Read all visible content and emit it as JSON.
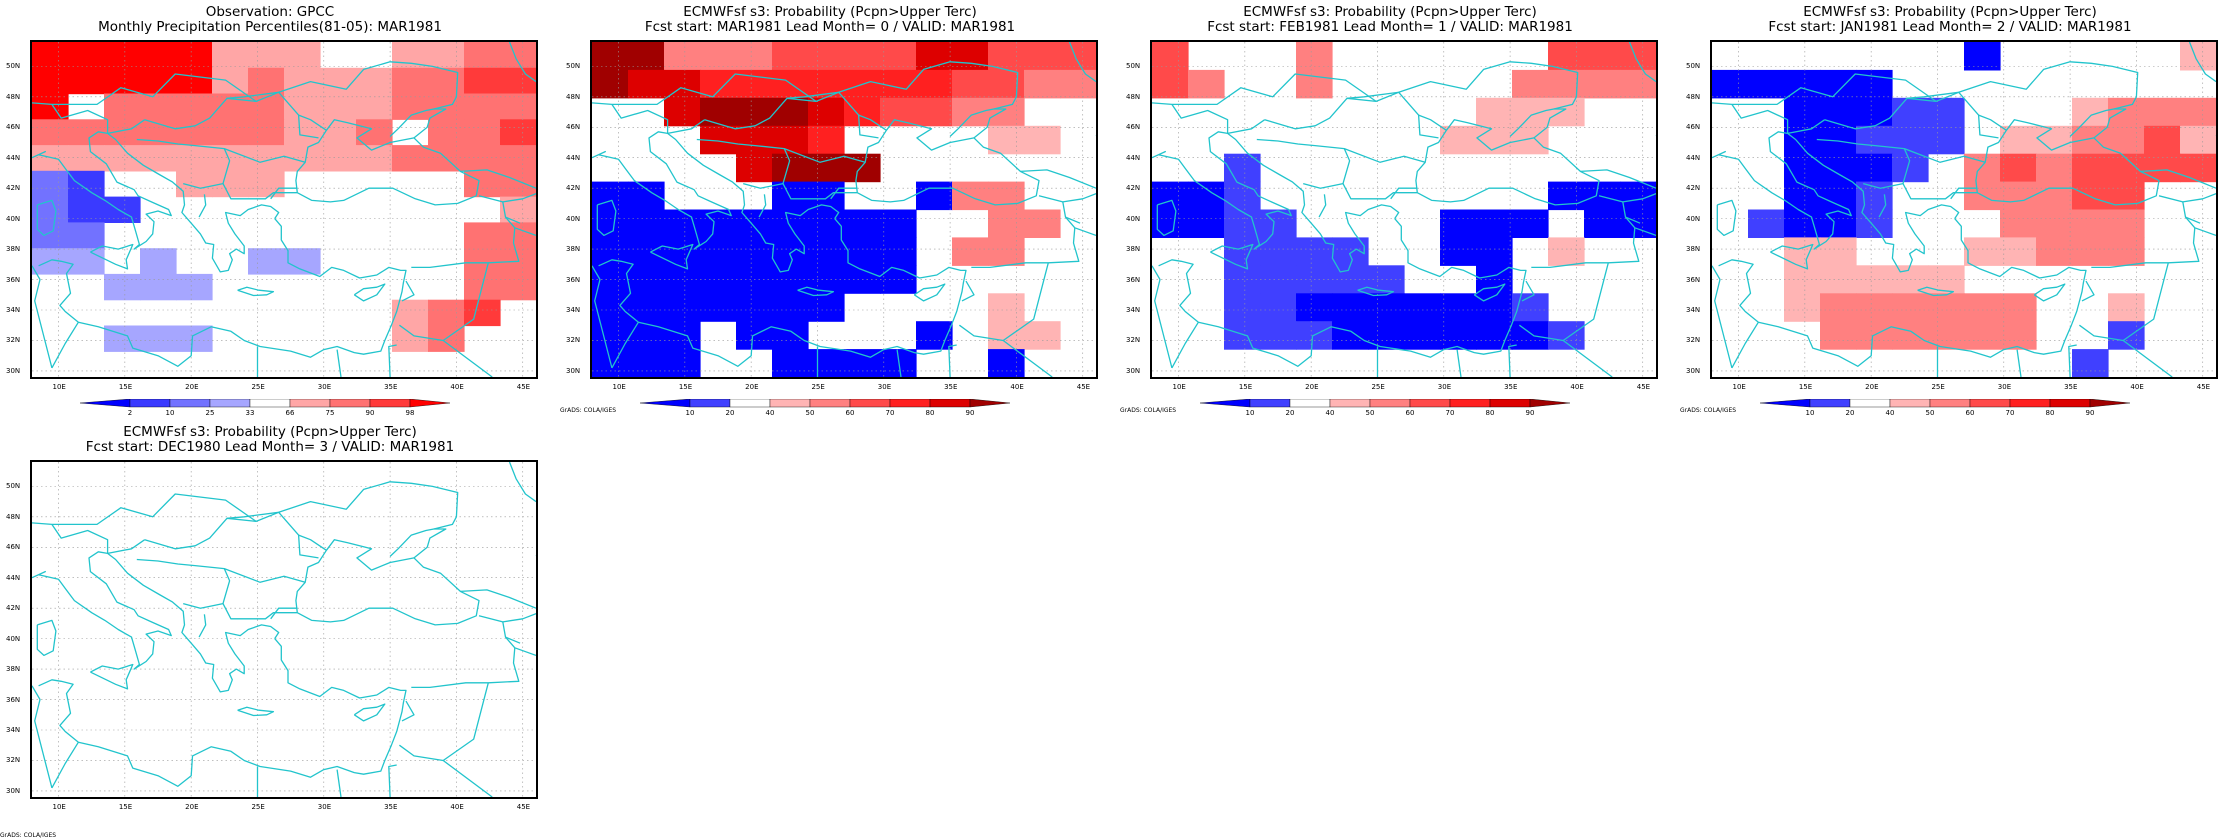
{
  "map_common": {
    "lon_ticks": [
      "10E",
      "15E",
      "20E",
      "25E",
      "30E",
      "35E",
      "40E",
      "45E"
    ],
    "lat_ticks": [
      "50N",
      "48N",
      "46N",
      "44N",
      "42N",
      "40N",
      "38N",
      "36N",
      "34N",
      "32N",
      "30N"
    ],
    "coast_color": "#22c4cc",
    "lon_range": [
      8,
      46
    ],
    "lat_range": [
      29.6,
      51.6
    ]
  },
  "panels": [
    {
      "id": "obs",
      "title1": "Observation: GPCC",
      "title2": "Monthly Precipitation Percentiles(81-05): MAR1981",
      "credit": "",
      "colorbar": {
        "labels": [
          "2",
          "10",
          "25",
          "33",
          "66",
          "75",
          "90",
          "98"
        ],
        "colors": [
          "#0000ff",
          "#3a3aff",
          "#7272ff",
          "#a6a6ff",
          "#ffffff",
          "#ffa6a6",
          "#ff7272",
          "#ff3a3a",
          "#ff0000"
        ]
      },
      "grid": [
        "66666222112233",
        "66666232223344",
        "61333332223333",
        "33333332231334",
        "22222222223333",
        "cb11222111113333",
        "cbb11111111112333",
        "cc1111111111333",
        "dd1d11dd111133",
        "11ddd111111133",
        "1111111111234",
        "11ddd1111123",
        "11111111111"
      ]
    },
    {
      "id": "lm0",
      "title1": "ECMWFsf s3: Probability (Pcpn>Upper Terc)",
      "title2": "Fcst start: MAR1981   Lead Month= 0 / VALID: MAR1981",
      "credit": "GrADS: COLA/IGES",
      "colorbar": {
        "labels": [
          "10",
          "20",
          "40",
          "50",
          "60",
          "70",
          "80",
          "90"
        ],
        "colors": [
          "#0000ff",
          "#4040ff",
          "#ffffff",
          "#ffb4b4",
          "#ff8080",
          "#ff4a4a",
          "#ff2020",
          "#dd0000",
          "#a00000"
        ]
      },
      "grid": [
        "77333444466444",
        "76655555554433",
        "11677765443311",
        "11166651111221",
        "11116000111111",
        "aa111aa11a3311",
        "aaaaaaaaa11331",
        "aaaaaaaaa1331",
        "aaaaaaaaa1111",
        "aaaaaaa1111211",
        "aaa1aa111a1221",
        "aaa11aaaa11a11"
      ]
    },
    {
      "id": "lm1",
      "title1": "ECMWFsf s3: Probability (Pcpn>Upper Terc)",
      "title2": "Fcst start: FEB1981   Lead Month= 1 / VALID: MAR1981",
      "credit": "GrADS: COLA/IGES",
      "colorbar": {
        "labels": [
          "10",
          "20",
          "40",
          "50",
          "60",
          "70",
          "80",
          "90"
        ],
        "colors": [
          "#0000ff",
          "#4040ff",
          "#ffffff",
          "#ffb4b4",
          "#ff8080",
          "#ff4a4a",
          "#ff2020",
          "#dd0000",
          "#a00000"
        ]
      },
      "grid": [
        "41113111111444",
        "43113111113333",
        "11111111122211",
        "11111111222111",
        "11b11111111111",
        "aab11111111aaa",
        "aabb1111aaa1aa",
        "11bbbb11aa1211",
        "11bbbbb11a1111",
        "11bbaaaaaab111",
        "11bbbaaaaaab11",
        "1111111111111"
      ]
    },
    {
      "id": "lm2",
      "title1": "ECMWFsf s3: Probability (Pcpn>Upper Terc)",
      "title2": "Fcst start: JAN1981   Lead Month= 2 / VALID: MAR1981",
      "credit": "GrADS: COLA/IGES",
      "colorbar": {
        "labels": [
          "10",
          "20",
          "40",
          "50",
          "60",
          "70",
          "80",
          "90"
        ],
        "colors": [
          "#0000ff",
          "#4040ff",
          "#ffffff",
          "#ffb4b4",
          "#ff8080",
          "#ff4a4a",
          "#ff2020",
          "#dd0000",
          "#a00000"
        ]
      },
      "grid": [
        "1111111a111112",
        "aaaaa111111111",
        "11aaabb1112333",
        "11aabbb1223342",
        "11aaab13434444",
        "11aab113334411",
        "1baab111333311",
        "11221112233311",
        "11222221111111",
        "11233333311211",
        "11133333311b11",
        "1111111111b111"
      ]
    },
    {
      "id": "lm3",
      "title1": "ECMWFsf s3: Probability (Pcpn>Upper Terc)",
      "title2": "Fcst start: DEC1980   Lead Month= 3 / VALID: MAR1981",
      "credit": "GrADS: COLA/IGES",
      "colorbar": null,
      "grid": []
    }
  ]
}
